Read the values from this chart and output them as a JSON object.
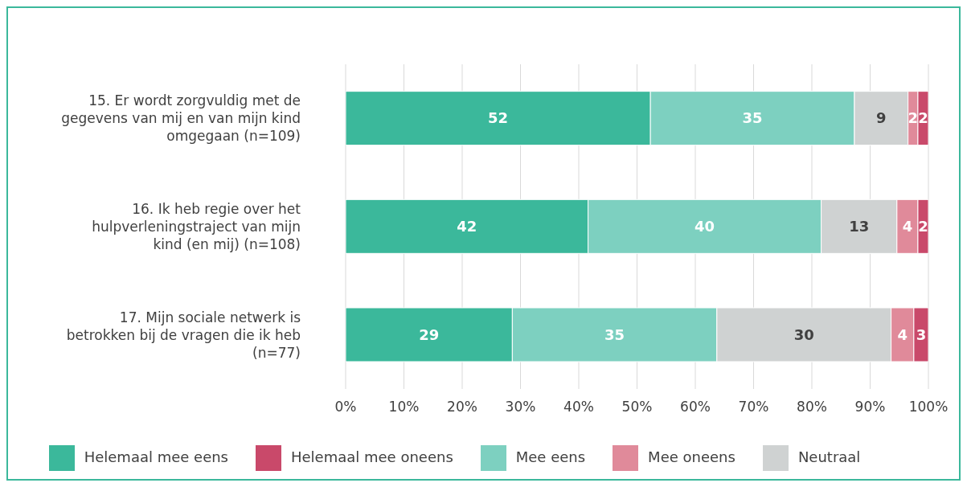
{
  "chart_data": {
    "type": "bar",
    "orientation": "horizontal",
    "stacked": true,
    "categories": [
      "15. Er wordt zorgvuldig met de gegevens van mij en van mijn kind omgegaan (n=109)",
      "16. Ik heb regie over het hulpverleningstraject van mijn kind (en mij) (n=108)",
      "17. Mijn sociale netwerk is betrokken bij de vragen die ik heb (n=77)"
    ],
    "series": [
      {
        "name": "Helemaal mee eens",
        "color": "#3bb89b",
        "values": [
          52.3,
          41.6,
          28.6
        ],
        "value_labels": [
          "52",
          "42",
          "29"
        ]
      },
      {
        "name": "Mee eens",
        "color": "#7dd0c0",
        "values": [
          35.0,
          40.0,
          35.1
        ],
        "value_labels": [
          "35",
          "40",
          "35"
        ]
      },
      {
        "name": "Neutraal",
        "color": "#cfd2d2",
        "values": [
          9.2,
          13.0,
          29.9
        ],
        "value_labels": [
          "9",
          "13",
          "30"
        ]
      },
      {
        "name": "Mee oneens",
        "color": "#e08a9a",
        "values": [
          1.7,
          3.6,
          3.9
        ],
        "value_labels": [
          "2",
          "4",
          "4"
        ]
      },
      {
        "name": "Helemaal mee oneens",
        "color": "#c9496a",
        "values": [
          1.8,
          1.8,
          2.5
        ],
        "value_labels": [
          "2",
          "2",
          "3"
        ]
      }
    ],
    "xlim": [
      0,
      100
    ],
    "xticks": [
      {
        "value": 0,
        "label": "0%"
      },
      {
        "value": 10,
        "label": "10%"
      },
      {
        "value": 20,
        "label": "20%"
      },
      {
        "value": 30,
        "label": "30%"
      },
      {
        "value": 40,
        "label": "40%"
      },
      {
        "value": 50,
        "label": "50%"
      },
      {
        "value": 60,
        "label": "60%"
      },
      {
        "value": 70,
        "label": "70%"
      },
      {
        "value": 80,
        "label": "80%"
      },
      {
        "value": 90,
        "label": "90%"
      },
      {
        "value": 100,
        "label": "100%"
      }
    ],
    "grid": "x",
    "legend": "bottom"
  }
}
